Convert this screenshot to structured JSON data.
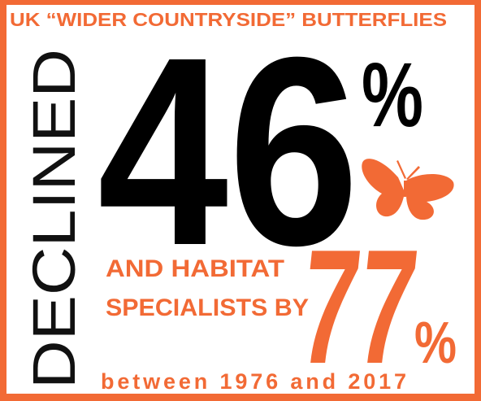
{
  "title": "UK “WIDER COUNTRYSIDE” BUTTERFLIES",
  "verb": "DECLINED",
  "stat1": {
    "number": "46",
    "unit": "%"
  },
  "subtitle": {
    "line1": "AND HABITAT",
    "line2": "SPECIALISTS BY"
  },
  "stat2": {
    "number": "77",
    "unit": "%"
  },
  "period": "between 1976 and 2017"
}
